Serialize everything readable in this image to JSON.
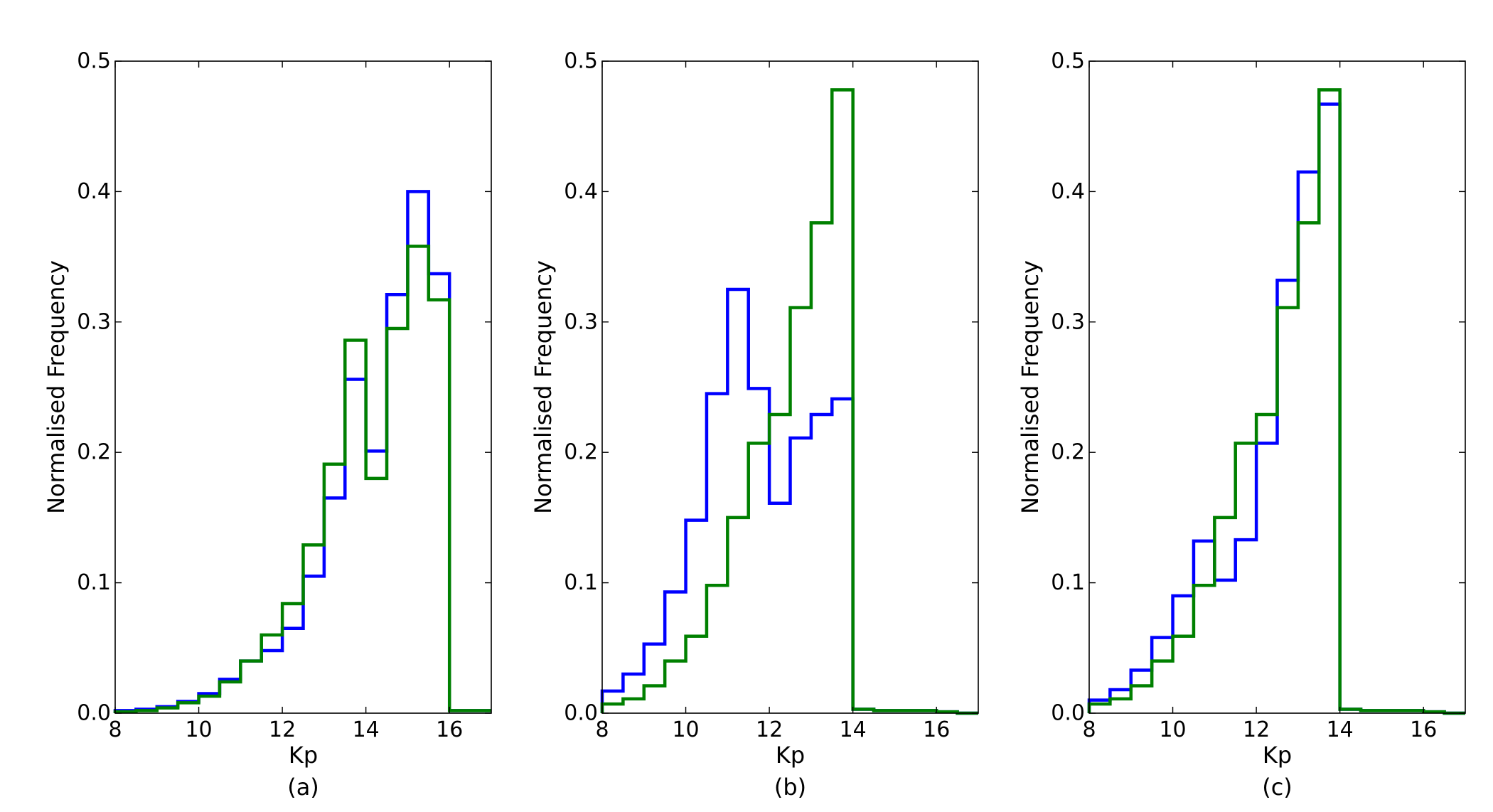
{
  "chart_data": [
    {
      "type": "histogram-step",
      "panel_label": "(a)",
      "xlabel": "Kp",
      "ylabel": "Normalised Frequency",
      "xlim": [
        8,
        17
      ],
      "ylim": [
        0,
        0.5
      ],
      "xticks": [
        "8",
        "10",
        "12",
        "14",
        "16"
      ],
      "yticks": [
        "0.0",
        "0.1",
        "0.2",
        "0.3",
        "0.4",
        "0.5"
      ],
      "bin_edges": [
        8.0,
        8.5,
        9.0,
        9.5,
        10.0,
        10.5,
        11.0,
        11.5,
        12.0,
        12.5,
        13.0,
        13.5,
        14.0,
        14.5,
        15.0,
        15.5,
        16.0,
        16.5,
        17.0
      ],
      "series": [
        {
          "name": "blue",
          "color": "#0000ff",
          "values": [
            0.002,
            0.003,
            0.005,
            0.009,
            0.015,
            0.026,
            0.04,
            0.048,
            0.065,
            0.105,
            0.165,
            0.256,
            0.201,
            0.321,
            0.4,
            0.337,
            0.002,
            0.002
          ]
        },
        {
          "name": "green",
          "color": "#008000",
          "values": [
            0.001,
            0.002,
            0.004,
            0.008,
            0.013,
            0.024,
            0.04,
            0.06,
            0.084,
            0.129,
            0.191,
            0.286,
            0.18,
            0.295,
            0.358,
            0.317,
            0.002,
            0.002
          ]
        }
      ]
    },
    {
      "type": "histogram-step",
      "panel_label": "(b)",
      "xlabel": "Kp",
      "ylabel": "Normalised Frequency",
      "xlim": [
        8,
        17
      ],
      "ylim": [
        0,
        0.5
      ],
      "xticks": [
        "8",
        "10",
        "12",
        "14",
        "16"
      ],
      "yticks": [
        "0.0",
        "0.1",
        "0.2",
        "0.3",
        "0.4",
        "0.5"
      ],
      "bin_edges": [
        8.0,
        8.5,
        9.0,
        9.5,
        10.0,
        10.5,
        11.0,
        11.5,
        12.0,
        12.5,
        13.0,
        13.5,
        14.0,
        14.5,
        15.0,
        15.5,
        16.0,
        16.5,
        17.0
      ],
      "series": [
        {
          "name": "blue",
          "color": "#0000ff",
          "values": [
            0.017,
            0.03,
            0.053,
            0.093,
            0.148,
            0.245,
            0.325,
            0.249,
            0.161,
            0.211,
            0.229,
            0.241,
            0.003,
            0.002,
            0.002,
            0.002,
            0.001,
            0.0
          ]
        },
        {
          "name": "green",
          "color": "#008000",
          "values": [
            0.007,
            0.011,
            0.021,
            0.04,
            0.059,
            0.098,
            0.15,
            0.207,
            0.229,
            0.311,
            0.376,
            0.478,
            0.003,
            0.002,
            0.002,
            0.002,
            0.001,
            0.0
          ]
        }
      ]
    },
    {
      "type": "histogram-step",
      "panel_label": "(c)",
      "xlabel": "Kp",
      "ylabel": "Normalised Frequency",
      "xlim": [
        8,
        17
      ],
      "ylim": [
        0,
        0.5
      ],
      "xticks": [
        "8",
        "10",
        "12",
        "14",
        "16"
      ],
      "yticks": [
        "0.0",
        "0.1",
        "0.2",
        "0.3",
        "0.4",
        "0.5"
      ],
      "bin_edges": [
        8.0,
        8.5,
        9.0,
        9.5,
        10.0,
        10.5,
        11.0,
        11.5,
        12.0,
        12.5,
        13.0,
        13.5,
        14.0,
        14.5,
        15.0,
        15.5,
        16.0,
        16.5,
        17.0
      ],
      "series": [
        {
          "name": "blue",
          "color": "#0000ff",
          "values": [
            0.01,
            0.018,
            0.033,
            0.058,
            0.09,
            0.132,
            0.102,
            0.133,
            0.207,
            0.332,
            0.415,
            0.467,
            0.003,
            0.002,
            0.002,
            0.002,
            0.001,
            0.0
          ]
        },
        {
          "name": "green",
          "color": "#008000",
          "values": [
            0.007,
            0.011,
            0.021,
            0.04,
            0.059,
            0.098,
            0.15,
            0.207,
            0.229,
            0.311,
            0.376,
            0.478,
            0.003,
            0.002,
            0.002,
            0.002,
            0.001,
            0.0
          ]
        }
      ]
    }
  ]
}
